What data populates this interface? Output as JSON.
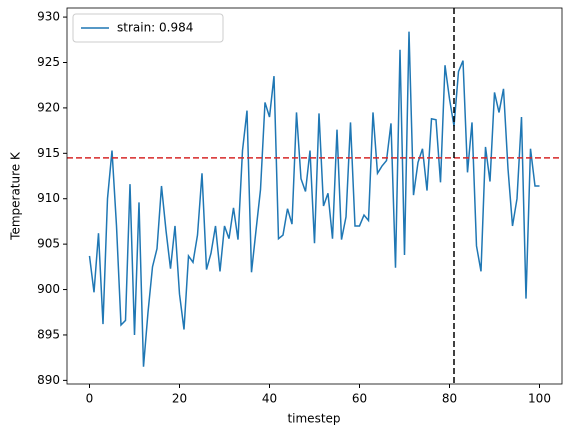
{
  "chart_data": {
    "type": "line",
    "xlabel": "timestep",
    "ylabel": "Temperature K",
    "x": [
      0,
      1,
      2,
      3,
      4,
      5,
      6,
      7,
      8,
      9,
      10,
      11,
      12,
      13,
      14,
      15,
      16,
      17,
      18,
      19,
      20,
      21,
      22,
      23,
      24,
      25,
      26,
      27,
      28,
      29,
      30,
      31,
      32,
      33,
      34,
      35,
      36,
      37,
      38,
      39,
      40,
      41,
      42,
      43,
      44,
      45,
      46,
      47,
      48,
      49,
      50,
      51,
      52,
      53,
      54,
      55,
      56,
      57,
      58,
      59,
      60,
      61,
      62,
      63,
      64,
      65,
      66,
      67,
      68,
      69,
      70,
      71,
      72,
      73,
      74,
      75,
      76,
      77,
      78,
      79,
      80,
      81,
      82,
      83,
      84,
      85,
      86,
      87,
      88,
      89,
      90,
      91,
      92,
      93,
      94,
      95,
      96,
      97,
      98,
      99,
      100
    ],
    "series": [
      {
        "name": "strain: 0.984",
        "color": "#1f77b4",
        "values": [
          903.7,
          899.7,
          906.2,
          896.2,
          910,
          915.3,
          907,
          896.1,
          896.6,
          911.6,
          895,
          909.6,
          891.5,
          897.5,
          902.5,
          904.5,
          911.4,
          906.5,
          902.3,
          907,
          899.5,
          895.6,
          903.7,
          903,
          906,
          912.8,
          902.2,
          904,
          907,
          902,
          907,
          905.6,
          909,
          905.5,
          915.3,
          919.7,
          901.9,
          906.5,
          911,
          920.6,
          919,
          923.5,
          905.6,
          906,
          908.9,
          907.2,
          919.5,
          912.2,
          910.8,
          915.3,
          905.1,
          919.4,
          909.2,
          910.6,
          905.6,
          917.6,
          905.5,
          908,
          918.4,
          907,
          907,
          908.2,
          907.6,
          919.5,
          912.8,
          913.6,
          914.2,
          918.3,
          902.4,
          926.4,
          903.8,
          928.4,
          910.4,
          914,
          915.5,
          910.9,
          918.8,
          918.7,
          911.8,
          924.7,
          921,
          918,
          924,
          925.2,
          912.9,
          918.4,
          904.8,
          902,
          915.7,
          911.9,
          921.7,
          919.5,
          922.1,
          913.3,
          907,
          910,
          919,
          899,
          915.5,
          911.4,
          911.4
        ]
      }
    ],
    "xlim": [
      -5,
      105
    ],
    "ylim": [
      889.6,
      931
    ],
    "xticks": [
      0,
      20,
      40,
      60,
      80,
      100
    ],
    "yticks": [
      890,
      895,
      900,
      905,
      910,
      915,
      920,
      925,
      930
    ],
    "hline": {
      "value": 914.5,
      "color": "#d62728"
    },
    "vline": {
      "value": 81,
      "color": "#000000"
    },
    "legend": "upper left"
  }
}
